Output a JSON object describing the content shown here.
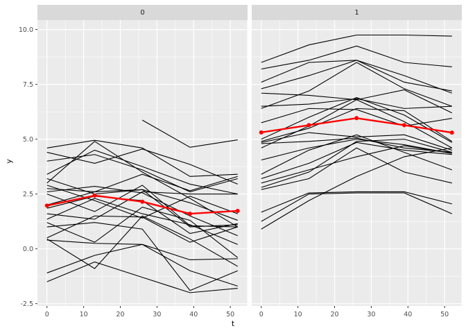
{
  "figure": {
    "xlabel": "t",
    "ylabel": "y",
    "facet_labels": [
      "0",
      "1"
    ]
  },
  "chart_data": {
    "type": "line",
    "description": "Faceted spaghetti plot of individual trajectories y vs t by group (facets 0 and 1), black individual lines with red mean profile line and points",
    "x": [
      0,
      13,
      26,
      39,
      52
    ],
    "xlabel": "t",
    "ylabel": "y",
    "x_ticks": [
      0,
      10,
      20,
      30,
      40,
      50
    ],
    "y_ticks": [
      10.0,
      7.5,
      5.0,
      2.5,
      0.0,
      -2.5
    ],
    "xlim": [
      -2.6,
      54.6
    ],
    "ylim": [
      -2.605,
      10.43
    ],
    "grid": "major-minor-white",
    "legend": "none",
    "colors": {
      "individual_line": "#000000",
      "mean_line": "#ff0000",
      "panel_bg": "#ebebeb",
      "strip_bg": "#d9d9d9",
      "grid_major": "#ffffff",
      "grid_minor": "#ffffff",
      "tick_label": "#4d4d4d",
      "tick_mark": "#333333"
    },
    "facets": [
      {
        "label": "0",
        "mean": [
          1.97,
          2.43,
          2.15,
          1.6,
          1.73
        ],
        "series": [
          [
            4.6,
            4.95,
            4.6,
            3.3,
            3.4
          ],
          [
            4.4,
            3.9,
            4.55,
            3.85,
            2.95
          ],
          [
            4.0,
            4.3,
            3.6,
            2.6,
            3.2
          ],
          [
            3.4,
            4.5,
            3.75,
            2.95,
            2.5
          ],
          [
            3.0,
            4.9,
            3.5,
            2.3,
            1.0
          ],
          [
            2.75,
            2.6,
            2.7,
            2.1,
            1.3
          ],
          [
            2.6,
            2.85,
            2.55,
            1.5,
            0.6
          ],
          [
            2.5,
            1.7,
            2.9,
            1.05,
            1.0
          ],
          [
            2.9,
            2.2,
            1.4,
            2.4,
            1.6
          ],
          [
            1.85,
            2.4,
            2.2,
            0.7,
            1.15
          ],
          [
            1.6,
            1.35,
            2.6,
            2.5,
            2.5
          ],
          [
            1.35,
            2.3,
            1.6,
            1.1,
            0.2
          ],
          [
            1.2,
            0.3,
            1.9,
            1.3,
            -0.4
          ],
          [
            0.5,
            1.5,
            1.45,
            0.3,
            1.0
          ],
          [
            0.45,
            -0.9,
            1.5,
            0.45,
            -0.8
          ],
          [
            -1.1,
            -0.3,
            0.2,
            -1.0,
            -1.7
          ],
          [
            -1.5,
            -0.6,
            -1.3,
            -2.0,
            -1.8
          ],
          [
            1.0,
            1.2,
            0.9,
            -1.9,
            -1.0
          ],
          [
            3.2,
            2.5,
            2.7,
            1.0,
            1.1
          ],
          [
            0.4,
            0.25,
            0.2,
            -0.5,
            -0.45
          ],
          [
            null,
            null,
            5.87,
            4.63,
            4.97
          ],
          [
            2.0,
            2.6,
            3.4,
            2.65,
            3.3
          ]
        ]
      },
      {
        "label": "1",
        "mean": [
          5.31,
          5.64,
          5.96,
          5.64,
          5.3
        ],
        "series": [
          [
            8.5,
            9.3,
            9.75,
            9.75,
            9.7
          ],
          [
            8.2,
            8.6,
            9.25,
            8.5,
            8.3
          ],
          [
            7.6,
            8.5,
            8.6,
            7.6,
            7.2
          ],
          [
            7.3,
            7.9,
            8.6,
            7.9,
            7.1
          ],
          [
            7.1,
            7.0,
            6.8,
            7.25,
            6.2
          ],
          [
            6.5,
            6.6,
            6.85,
            6.4,
            6.5
          ],
          [
            5.75,
            6.4,
            6.35,
            5.6,
            5.95
          ],
          [
            4.9,
            5.5,
            6.4,
            6.3,
            4.9
          ],
          [
            4.85,
            5.3,
            5.1,
            5.2,
            4.5
          ],
          [
            4.8,
            4.9,
            5.05,
            4.6,
            4.4
          ],
          [
            4.05,
            4.6,
            5.0,
            4.75,
            4.35
          ],
          [
            3.4,
            4.5,
            5.2,
            4.4,
            3.6
          ],
          [
            3.2,
            3.9,
            4.85,
            4.5,
            4.3
          ],
          [
            3.0,
            3.6,
            4.2,
            4.7,
            4.35
          ],
          [
            1.67,
            2.55,
            2.6,
            2.6,
            2.05
          ],
          [
            1.25,
            2.5,
            2.55,
            2.55,
            1.6
          ],
          [
            0.9,
            2.2,
            3.3,
            4.2,
            4.6
          ],
          [
            2.8,
            3.5,
            4.9,
            5.0,
            4.4
          ],
          [
            5.0,
            6.0,
            6.9,
            6.1,
            4.85
          ],
          [
            6.4,
            7.2,
            8.5,
            7.3,
            6.5
          ],
          [
            2.7,
            3.2,
            4.6,
            3.5,
            3.0
          ],
          [
            4.6,
            5.6,
            6.8,
            5.8,
            4.6
          ]
        ]
      }
    ]
  }
}
